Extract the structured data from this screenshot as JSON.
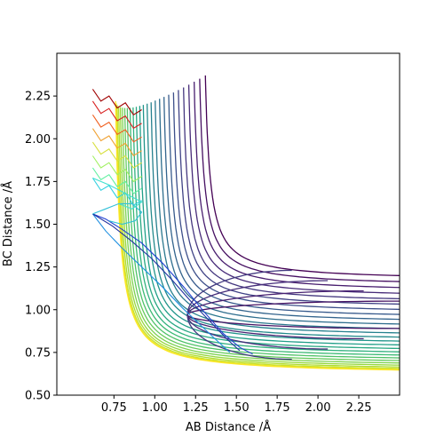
{
  "chart_data": {
    "type": "contour",
    "title": "",
    "xlabel": "AB Distance /Å",
    "ylabel": "BC Distance /Å",
    "xlim": [
      0.4,
      2.5
    ],
    "ylim": [
      0.5,
      2.5
    ],
    "xticks": [
      0.75,
      1.0,
      1.25,
      1.5,
      1.75,
      2.0,
      2.25
    ],
    "xtick_labels": [
      "0.75",
      "1.00",
      "1.25",
      "1.50",
      "1.75",
      "2.00",
      "2.25"
    ],
    "yticks": [
      0.5,
      0.75,
      1.0,
      1.25,
      1.5,
      1.75,
      2.0,
      2.25
    ],
    "ytick_labels": [
      "0.50",
      "0.75",
      "1.00",
      "1.25",
      "1.50",
      "1.75",
      "2.00",
      "2.25"
    ],
    "grid": false,
    "legend": "none",
    "colormap": "viridis",
    "surface": {
      "asymptote_ab": 0.74,
      "asymptote_bc": 0.74,
      "well_min_ab": 1.2,
      "well_min_bc": 0.97,
      "contour_count": 26
    },
    "trajectory_series": [
      {
        "color": "#1f3fd1",
        "points": [
          [
            0.62,
            1.56
          ],
          [
            0.7,
            1.53
          ],
          [
            0.8,
            1.47
          ],
          [
            0.92,
            1.39
          ],
          [
            1.05,
            1.27
          ],
          [
            1.18,
            1.13
          ],
          [
            1.3,
            0.99
          ],
          [
            1.42,
            0.86
          ],
          [
            1.52,
            0.78
          ],
          [
            1.6,
            0.74
          ]
        ]
      },
      {
        "color": "#1f8fe0",
        "points": [
          [
            0.62,
            1.56
          ],
          [
            0.7,
            1.46
          ],
          [
            0.8,
            1.36
          ],
          [
            0.92,
            1.25
          ],
          [
            1.05,
            1.13
          ],
          [
            1.17,
            1.01
          ],
          [
            1.28,
            0.91
          ],
          [
            1.38,
            0.82
          ],
          [
            1.46,
            0.75
          ]
        ]
      },
      {
        "color": "#2030a0",
        "points": [
          [
            0.62,
            1.56
          ],
          [
            0.74,
            1.49
          ],
          [
            0.86,
            1.4
          ],
          [
            0.98,
            1.3
          ],
          [
            1.1,
            1.18
          ],
          [
            1.22,
            1.05
          ],
          [
            1.34,
            0.93
          ],
          [
            1.44,
            0.83
          ],
          [
            1.52,
            0.76
          ]
        ]
      },
      {
        "color": "#30c0d8",
        "points": [
          [
            0.62,
            1.56
          ],
          [
            0.7,
            1.59
          ],
          [
            0.78,
            1.62
          ],
          [
            0.86,
            1.62
          ],
          [
            0.92,
            1.57
          ],
          [
            0.88,
            1.52
          ],
          [
            0.8,
            1.5
          ],
          [
            0.72,
            1.52
          ]
        ]
      },
      {
        "color": "#40e0d0",
        "points": [
          [
            0.62,
            1.77
          ],
          [
            0.72,
            1.73
          ],
          [
            0.82,
            1.68
          ],
          [
            0.92,
            1.63
          ],
          [
            0.86,
            1.59
          ],
          [
            0.78,
            1.62
          ]
        ]
      }
    ],
    "oscillation_bundles": [
      {
        "color": "#a00000",
        "start": [
          0.62,
          2.29
        ],
        "end": [
          0.92,
          2.17
        ]
      },
      {
        "color": "#d82020",
        "start": [
          0.62,
          2.22
        ],
        "end": [
          0.92,
          2.09
        ]
      },
      {
        "color": "#f06020",
        "start": [
          0.62,
          2.14
        ],
        "end": [
          0.92,
          2.01
        ]
      },
      {
        "color": "#f0a030",
        "start": [
          0.62,
          2.06
        ],
        "end": [
          0.92,
          1.93
        ]
      },
      {
        "color": "#d8e040",
        "start": [
          0.62,
          1.98
        ],
        "end": [
          0.92,
          1.86
        ]
      },
      {
        "color": "#a0f060",
        "start": [
          0.62,
          1.9
        ],
        "end": [
          0.92,
          1.78
        ]
      },
      {
        "color": "#60f0a0",
        "start": [
          0.62,
          1.83
        ],
        "end": [
          0.92,
          1.71
        ]
      },
      {
        "color": "#30d0e0",
        "start": [
          0.62,
          1.77
        ],
        "end": [
          0.92,
          1.64
        ]
      }
    ]
  }
}
